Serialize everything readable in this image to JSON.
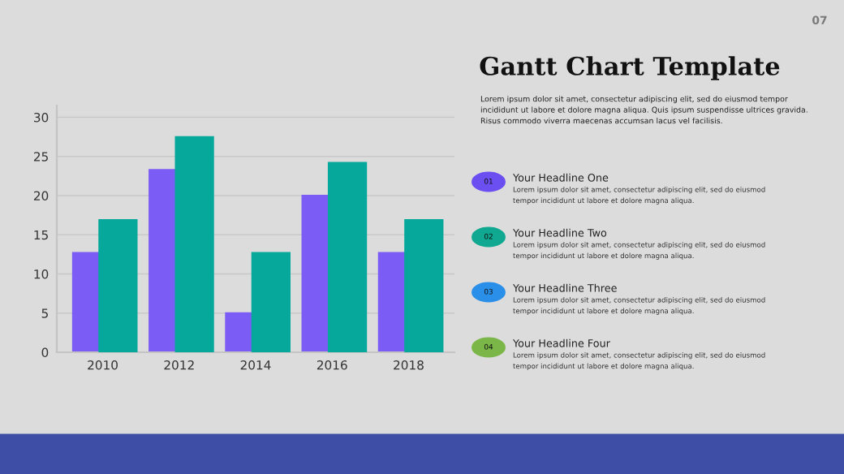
{
  "chart_data": {
    "type": "bar",
    "title": "Gantt Chart Template",
    "categories": [
      "2010",
      "2012",
      "2014",
      "2016",
      "2018"
    ],
    "series": [
      {
        "color": "#7b5cf5",
        "values": [
          12.8,
          23.4,
          5.1,
          20.1,
          12.8
        ]
      },
      {
        "color": "#05a89a",
        "values": [
          17,
          27.6,
          12.8,
          24.3,
          17
        ]
      }
    ],
    "ylim": [
      0,
      31.5
    ],
    "yticks": [
      0,
      5,
      10,
      15,
      20,
      25,
      30
    ],
    "grid": "y",
    "annotations": [
      "07",
      "Lorem ipsum dolor sit amet, consectetur adipiscing elit, sed do eiusmod tempor\nincididunt ut labore et dolore magna aliqua. Quis ipsum suspendisse ultrices gravida.\nRisus commodo viverra maecenas accumsan lacus vel facilisis.",
      "01",
      "Your Headline One",
      "Lorem ipsum dolor sit amet, consectetur adipiscing elit, sed do eiusmod\ntempor incididunt ut labore et dolore magna aliqua.",
      "02",
      "Your Headline Two",
      "Lorem ipsum dolor sit amet, consectetur adipiscing elit, sed do eiusmod\ntempor incididunt ut labore et dolore magna aliqua.",
      "03",
      "Your Headline Three",
      "Lorem ipsum dolor sit amet, consectetur adipiscing elit, sed do eiusmod\ntempor incididunt ut labore et dolore magna aliqua.",
      "04",
      "Your Headline Four",
      "Lorem ipsum dolor sit amet, consectetur adipiscing elit, sed do eiusmod\ntempor incididunt ut labore et dolore magna aliqua."
    ]
  }
}
